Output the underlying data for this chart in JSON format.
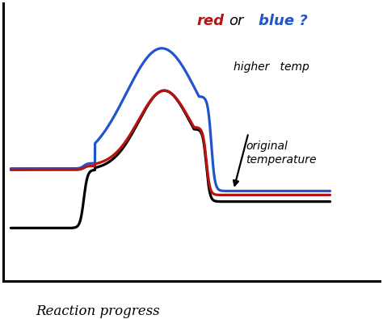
{
  "bg_color": "#ffffff",
  "black_color": "#000000",
  "red_color": "#bb1111",
  "blue_color": "#2255cc",
  "xlabel": "Reaction progress",
  "figsize": [
    4.74,
    3.95
  ],
  "dpi": 100,
  "xlim": [
    -0.1,
    7.5
  ],
  "ylim": [
    0.0,
    10.5
  ]
}
